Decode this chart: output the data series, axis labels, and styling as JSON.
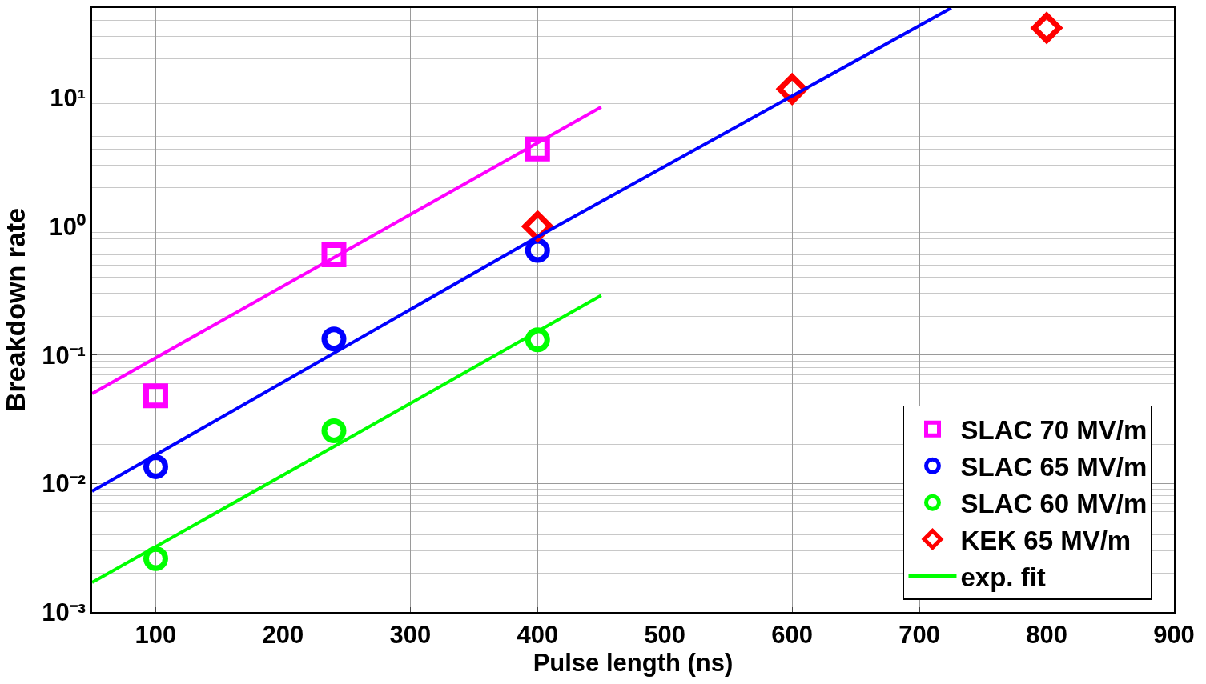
{
  "chart_data": {
    "type": "scatter",
    "xlabel": "Pulse length (ns)",
    "ylabel": "Breakdown rate",
    "log": "y",
    "xlim": [
      50,
      900
    ],
    "xticks": [
      100,
      200,
      300,
      400,
      500,
      600,
      700,
      800,
      900
    ],
    "ylim": [
      0.001,
      50
    ],
    "yticks": [
      {
        "value": 0.001,
        "label": "10⁻³"
      },
      {
        "value": 0.01,
        "label": "10⁻²"
      },
      {
        "value": 0.1,
        "label": "10⁻¹"
      },
      {
        "value": 1,
        "label": "10⁰"
      },
      {
        "value": 10,
        "label": "10¹"
      }
    ],
    "grid": true,
    "legend": "bottom right",
    "series": [
      {
        "name": "SLAC 70 MV/m",
        "color": "#ff00ff",
        "marker": "square",
        "x": [
          100,
          240,
          400
        ],
        "values": [
          0.048,
          0.6,
          4.0
        ]
      },
      {
        "name": "SLAC 65 MV/m",
        "color": "#0000ff",
        "marker": "circle",
        "x": [
          100,
          240,
          400
        ],
        "values": [
          0.0135,
          0.133,
          0.65
        ]
      },
      {
        "name": "SLAC 60 MV/m",
        "color": "#00ff00",
        "marker": "circle",
        "x": [
          100,
          240,
          400
        ],
        "values": [
          0.0026,
          0.0257,
          0.131
        ]
      },
      {
        "name": "KEK 65 MV/m",
        "color": "#ff0000",
        "marker": "diamond",
        "x": [
          400,
          600,
          800
        ],
        "values": [
          1.0,
          11.7,
          35
        ]
      },
      {
        "type": "line",
        "color": "#ff00ff",
        "x": [
          50,
          250,
          450
        ],
        "values": [
          0.05,
          0.65,
          8.5
        ]
      },
      {
        "type": "line",
        "color": "#0000ff",
        "x": [
          50,
          400,
          725
        ],
        "values": [
          0.0087,
          0.83,
          50
        ]
      },
      {
        "type": "line",
        "name": "exp. fit",
        "color": "#00ff00",
        "x": [
          50,
          250,
          450
        ],
        "values": [
          0.0017,
          0.022,
          0.29
        ]
      }
    ]
  }
}
